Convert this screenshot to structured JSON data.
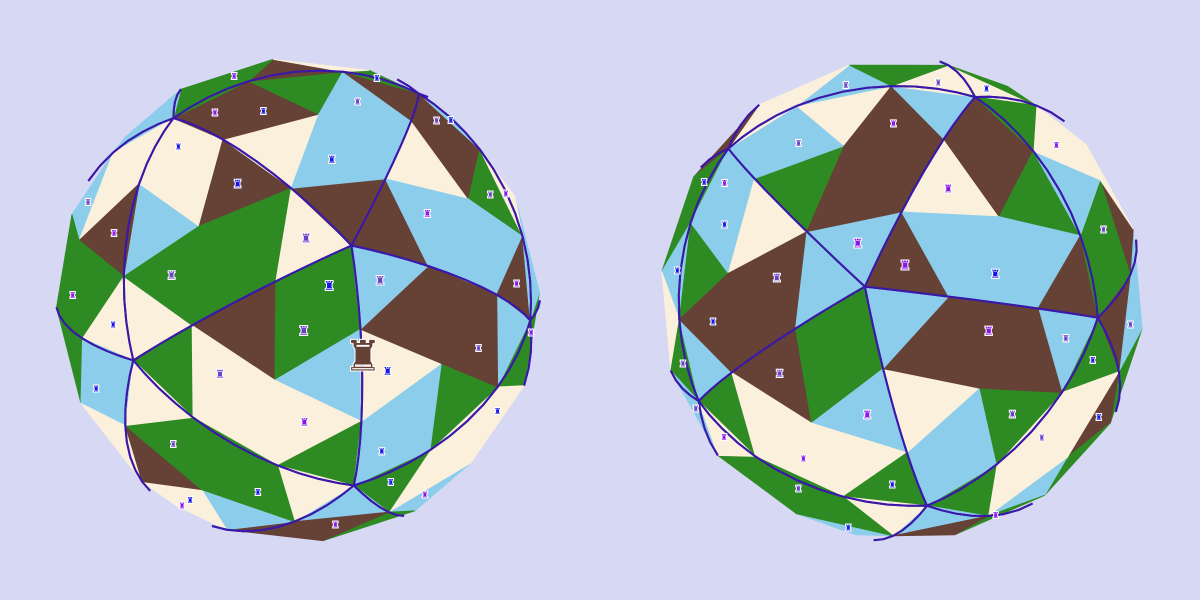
{
  "board": {
    "palette": [
      "#fbf0dc",
      "#8dcdec",
      "#2e8b23",
      "#664136"
    ],
    "edge_color": "#3a18a8",
    "background": "#d6d8f4"
  },
  "pieces": {
    "selected": {
      "type": "rook",
      "glyph": "♜",
      "color": "#664136"
    },
    "marker_glyph": "♜",
    "marker_colors": [
      "#1414e6",
      "#8a14ea",
      "#6a40c8"
    ]
  },
  "views": [
    {
      "name": "left-globe"
    },
    {
      "name": "right-globe"
    }
  ]
}
